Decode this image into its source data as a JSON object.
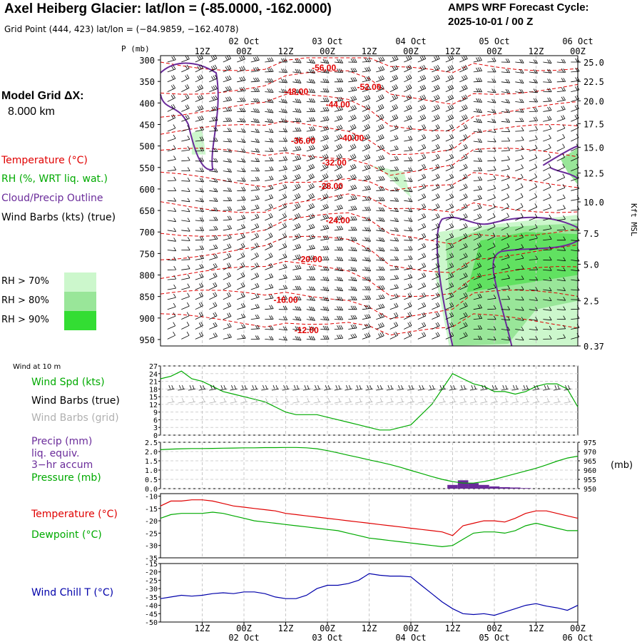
{
  "header": {
    "title": "Axel Heiberg Glacier:  lat/lon = (-85.0000, -162.0000)",
    "subtitle": "Grid Point (444, 423) lat/lon = (−84.9859, −162.4078)",
    "cycle_label": "AMPS WRF Forecast Cycle:",
    "cycle_value": "2025-10-01 / 00  Z"
  },
  "left_legend": {
    "grid_label": "Model Grid ΔX:",
    "grid_value": "8.000 km",
    "temperature": "Temperature (°C)",
    "rh": "RH (%, WRT liq. wat.)",
    "cloud": "Cloud/Precip Outline",
    "wind": "Wind Barbs (kts) (true)",
    "rh70": "RH > 70%",
    "rh80": "RH > 80%",
    "rh90": "RH > 90%",
    "wind10m": "Wind at 10 m",
    "wind_spd": "Wind Spd (kts)",
    "wind_barbs_true": "Wind Barbs (true)",
    "wind_barbs_grid": "Wind Barbs (grid)",
    "precip1": "Precip (mm)",
    "precip2": "liq. equiv.",
    "precip3": "3−hr accum",
    "pressure": "Pressure (mb)",
    "temp2": "Temperature (°C)",
    "dewpoint": "Dewpoint (°C)",
    "windchill": "Wind Chill T (°C)"
  },
  "colors": {
    "temperature": "#e00000",
    "rh": "#00aa00",
    "cloud": "#6a2b9a",
    "wind": "#000000",
    "wind_grid": "#b0b0b0",
    "windchill": "#0000aa",
    "rh70": "#ccf7cc",
    "rh80": "#99e699",
    "rh90": "#33dd33"
  },
  "chart_data": [
    {
      "type": "heatmap",
      "name": "time-height cross section",
      "time_labels_top": [
        {
          "t": 12,
          "hour": "12Z",
          "day": ""
        },
        {
          "t": 24,
          "hour": "00Z",
          "day": "02 Oct"
        },
        {
          "t": 36,
          "hour": "12Z",
          "day": ""
        },
        {
          "t": 48,
          "hour": "00Z",
          "day": "03 Oct"
        },
        {
          "t": 60,
          "hour": "12Z",
          "day": ""
        },
        {
          "t": 72,
          "hour": "00Z",
          "day": "04 Oct"
        },
        {
          "t": 84,
          "hour": "12Z",
          "day": ""
        },
        {
          "t": 96,
          "hour": "00Z",
          "day": "05 Oct"
        },
        {
          "t": 108,
          "hour": "12Z",
          "day": ""
        },
        {
          "t": 120,
          "hour": "00Z",
          "day": "06 Oct"
        }
      ],
      "x_range_hours": [
        0,
        120
      ],
      "pressure_axis_label": "P (mb)",
      "pressure_ticks": [
        300,
        350,
        400,
        450,
        500,
        550,
        600,
        650,
        700,
        750,
        800,
        850,
        900,
        950
      ],
      "pressure_range": [
        290,
        965
      ],
      "height_axis_label": "Kft MSL",
      "height_ticks": [
        {
          "p": 305,
          "label": "25.0"
        },
        {
          "p": 350,
          "label": "22.5"
        },
        {
          "p": 395,
          "label": "20.0"
        },
        {
          "p": 448,
          "label": "17.5"
        },
        {
          "p": 503,
          "label": "15.0"
        },
        {
          "p": 563,
          "label": "12.5"
        },
        {
          "p": 630,
          "label": "10.0"
        },
        {
          "p": 703,
          "label": "7.5"
        },
        {
          "p": 775,
          "label": "5.0"
        },
        {
          "p": 860,
          "label": "2.5"
        },
        {
          "p": 965,
          "label": "0.37"
        }
      ],
      "temperature_labels": [
        {
          "t": 47,
          "p": 325,
          "label": "-56.00"
        },
        {
          "t": 60,
          "p": 370,
          "label": "-52.00"
        },
        {
          "t": 39,
          "p": 380,
          "label": "-48.00"
        },
        {
          "t": 51,
          "p": 410,
          "label": "-44.00"
        },
        {
          "t": 55,
          "p": 488,
          "label": "-40.00"
        },
        {
          "t": 41,
          "p": 495,
          "label": "-36.00"
        },
        {
          "t": 50,
          "p": 545,
          "label": "-32.00"
        },
        {
          "t": 49,
          "p": 600,
          "label": "-28.00"
        },
        {
          "t": 51,
          "p": 680,
          "label": "-24.00"
        },
        {
          "t": 43,
          "p": 770,
          "label": "-20.00"
        },
        {
          "t": 36,
          "p": 865,
          "label": "-16.00"
        },
        {
          "t": 42,
          "p": 935,
          "label": "-12.00"
        }
      ],
      "temperature_levels_C": [
        -56,
        -52,
        -48,
        -44,
        -40,
        -36,
        -32,
        -28,
        -24,
        -20,
        -16,
        -12
      ]
    },
    {
      "type": "line",
      "name": "wind speed 10 m",
      "ylabel": "Wind Spd (kts)",
      "yticks": [
        0,
        3,
        6,
        9,
        12,
        15,
        18,
        21,
        24,
        27
      ],
      "ylim": [
        0,
        27
      ],
      "x": [
        0,
        3,
        6,
        9,
        12,
        15,
        18,
        21,
        24,
        27,
        30,
        33,
        36,
        39,
        42,
        45,
        48,
        51,
        54,
        57,
        60,
        63,
        66,
        69,
        72,
        75,
        78,
        81,
        84,
        87,
        90,
        93,
        96,
        99,
        102,
        105,
        108,
        111,
        114,
        117,
        120
      ],
      "values": [
        22,
        23,
        25,
        22,
        21,
        19,
        17,
        16,
        15,
        14,
        13,
        11,
        9,
        8,
        8,
        8,
        7,
        6,
        5,
        4,
        3,
        2,
        2,
        3,
        4,
        8,
        12,
        18,
        24,
        22,
        20,
        19,
        17,
        17,
        16,
        17,
        19,
        20,
        20,
        18,
        11
      ]
    },
    {
      "type": "line",
      "name": "precip and pressure",
      "left_ylabel": "Precip (mm)",
      "left_yticks": [
        "0.0",
        "0.5",
        "1.0",
        "1.5",
        "2.0",
        "2.5"
      ],
      "left_ylim": [
        0,
        2.5
      ],
      "right_ylabel": "(mb)",
      "right_yticks": [
        950,
        955,
        960,
        965,
        970,
        975
      ],
      "right_ylim": [
        950,
        975
      ],
      "pressure_x": [
        0,
        3,
        6,
        9,
        12,
        15,
        18,
        21,
        24,
        27,
        30,
        33,
        36,
        39,
        42,
        45,
        48,
        51,
        54,
        57,
        60,
        63,
        66,
        69,
        72,
        75,
        78,
        81,
        84,
        87,
        90,
        93,
        96,
        99,
        102,
        105,
        108,
        111,
        114,
        117,
        120
      ],
      "pressure_values": [
        971,
        971.3,
        971.5,
        971.6,
        971.6,
        971.7,
        971.8,
        971.9,
        972,
        972,
        972.1,
        972.1,
        972.2,
        972.2,
        972,
        971.5,
        970.5,
        969.3,
        968,
        966.8,
        965.5,
        964.3,
        963,
        961.5,
        959.8,
        958.2,
        956.5,
        955,
        953.8,
        953,
        953,
        953.8,
        955,
        956.5,
        958,
        959.5,
        961,
        962.8,
        964.8,
        966.5,
        967.5
      ],
      "precip_bars": [
        {
          "t": 84,
          "value": 0.2
        },
        {
          "t": 87,
          "value": 0.45
        },
        {
          "t": 90,
          "value": 0.3
        },
        {
          "t": 93,
          "value": 0.2
        },
        {
          "t": 96,
          "value": 0.12
        },
        {
          "t": 99,
          "value": 0.08
        },
        {
          "t": 102,
          "value": 0.06
        },
        {
          "t": 105,
          "value": 0.03
        }
      ]
    },
    {
      "type": "line",
      "name": "temperature and dewpoint",
      "yticks": [
        -35,
        -30,
        -25,
        -20,
        -15,
        -10
      ],
      "ylim": [
        -35,
        -9
      ],
      "x": [
        0,
        3,
        6,
        9,
        12,
        15,
        18,
        21,
        24,
        27,
        30,
        33,
        36,
        39,
        42,
        45,
        48,
        51,
        54,
        57,
        60,
        63,
        66,
        69,
        72,
        75,
        78,
        81,
        84,
        87,
        90,
        93,
        96,
        99,
        102,
        105,
        108,
        111,
        114,
        117,
        120
      ],
      "series": [
        {
          "name": "Temperature (°C)",
          "values": [
            -14,
            -12,
            -12,
            -11.5,
            -11.5,
            -12,
            -13,
            -14,
            -14.5,
            -15,
            -15.5,
            -16,
            -17,
            -17.5,
            -18,
            -18.5,
            -19,
            -19.5,
            -20,
            -20.5,
            -21,
            -21.5,
            -22,
            -22.5,
            -23,
            -23.5,
            -24,
            -24.5,
            -26,
            -22,
            -21,
            -20,
            -20,
            -20.5,
            -19,
            -17,
            -16,
            -16,
            -17,
            -18,
            -19
          ]
        },
        {
          "name": "Dewpoint (°C)",
          "values": [
            -19,
            -17.5,
            -17,
            -17,
            -17,
            -16.5,
            -17,
            -18,
            -19,
            -20,
            -20.5,
            -21,
            -21.5,
            -22,
            -22.5,
            -23,
            -23.5,
            -24,
            -25,
            -26,
            -27,
            -27.5,
            -28,
            -28.5,
            -29,
            -29.5,
            -30,
            -30.5,
            -30,
            -27.5,
            -25,
            -24.5,
            -24.5,
            -25,
            -24,
            -22,
            -21,
            -22,
            -23,
            -24,
            -24
          ]
        }
      ]
    },
    {
      "type": "line",
      "name": "wind chill",
      "ylabel": "Wind Chill T (°C)",
      "yticks": [
        -50,
        -45,
        -40,
        -35,
        -30,
        -25,
        -20,
        -15
      ],
      "ylim": [
        -50,
        -15
      ],
      "x": [
        0,
        3,
        6,
        9,
        12,
        15,
        18,
        21,
        24,
        27,
        30,
        33,
        36,
        39,
        42,
        45,
        48,
        51,
        54,
        57,
        60,
        63,
        66,
        69,
        72,
        75,
        78,
        81,
        84,
        87,
        90,
        93,
        96,
        99,
        102,
        105,
        108,
        111,
        114,
        117,
        120
      ],
      "values": [
        -36,
        -35,
        -34,
        -34.5,
        -34,
        -33,
        -32.5,
        -33,
        -32,
        -32,
        -33,
        -35,
        -36,
        -36,
        -34,
        -30,
        -28,
        -28,
        -27,
        -25,
        -21,
        -22,
        -22.5,
        -22.5,
        -23,
        -28,
        -33,
        -38,
        -42,
        -45,
        -45.5,
        -45,
        -46,
        -44,
        -42,
        -40,
        -39,
        -40.5,
        -41.5,
        -43,
        -40
      ]
    }
  ]
}
